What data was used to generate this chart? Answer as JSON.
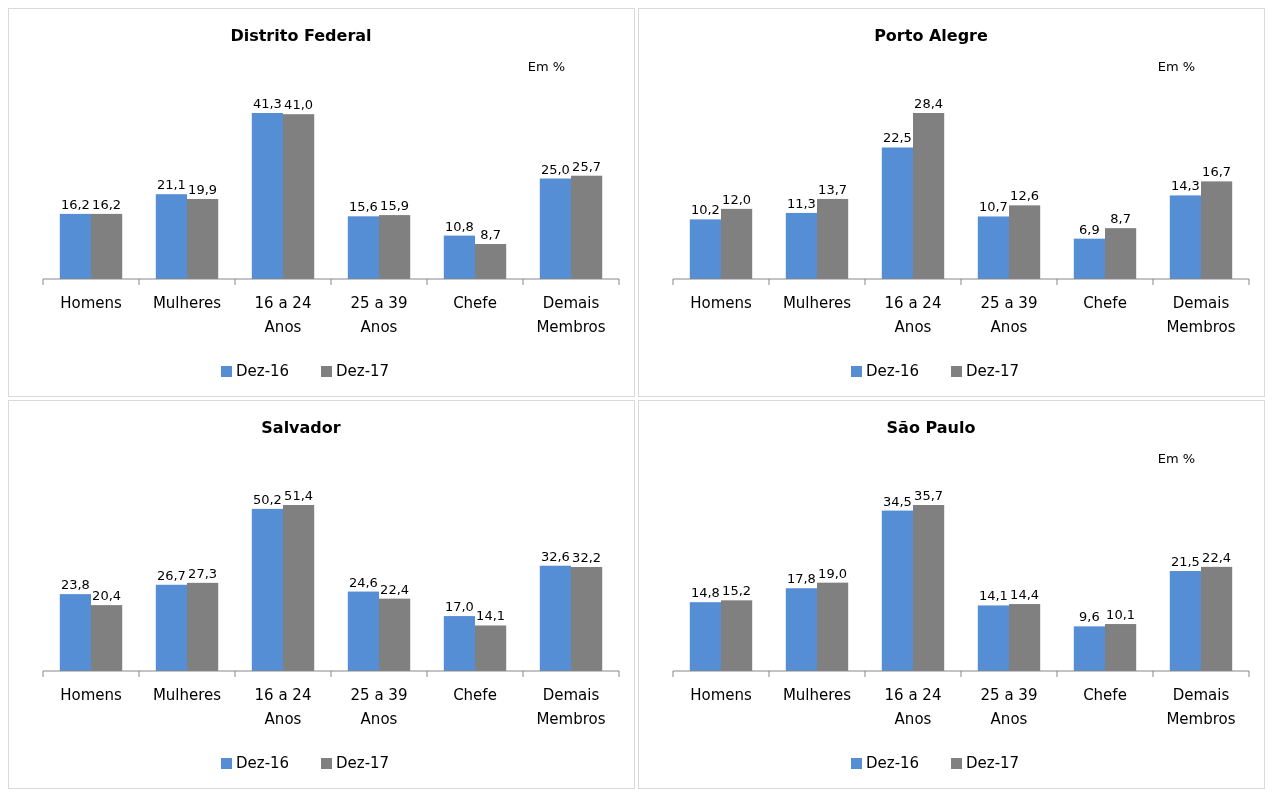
{
  "chart_data": [
    {
      "type": "bar",
      "title": "Distrito Federal",
      "annotations": [
        "Em %"
      ],
      "categories": [
        "Homens",
        "Mulheres",
        "16 a 24 Anos",
        "25 a 39 Anos",
        "Chefe",
        "Demais Membros"
      ],
      "series": [
        {
          "name": "Dez-16",
          "color": "#558ed5",
          "values": [
            16.2,
            21.1,
            41.3,
            15.6,
            10.8,
            25.0
          ],
          "value_labels": [
            "16,2",
            "21,1",
            "41,3",
            "15,6",
            "10,8",
            "25,0"
          ]
        },
        {
          "name": "Dez-17",
          "color": "#808080",
          "values": [
            16.2,
            19.9,
            41.0,
            15.9,
            8.7,
            25.7
          ],
          "value_labels": [
            "16,2",
            "19,9",
            "41,0",
            "15,9",
            "8,7",
            "25,7"
          ]
        }
      ],
      "legend": "bottom"
    },
    {
      "type": "bar",
      "title": "Porto Alegre",
      "annotations": [
        "Em %"
      ],
      "categories": [
        "Homens",
        "Mulheres",
        "16 a 24 Anos",
        "25 a 39 Anos",
        "Chefe",
        "Demais Membros"
      ],
      "series": [
        {
          "name": "Dez-16",
          "color": "#558ed5",
          "values": [
            10.2,
            11.3,
            22.5,
            10.7,
            6.9,
            14.3
          ],
          "value_labels": [
            "10,2",
            "11,3",
            "22,5",
            "10,7",
            "6,9",
            "14,3"
          ]
        },
        {
          "name": "Dez-17",
          "color": "#808080",
          "values": [
            12.0,
            13.7,
            28.4,
            12.6,
            8.7,
            16.7
          ],
          "value_labels": [
            "12,0",
            "13,7",
            "28,4",
            "12,6",
            "8,7",
            "16,7"
          ]
        }
      ],
      "legend": "bottom"
    },
    {
      "type": "bar",
      "title": "Salvador",
      "categories": [
        "Homens",
        "Mulheres",
        "16 a 24 Anos",
        "25 a 39 Anos",
        "Chefe",
        "Demais Membros"
      ],
      "series": [
        {
          "name": "Dez-16",
          "color": "#558ed5",
          "values": [
            23.8,
            26.7,
            50.2,
            24.6,
            17.0,
            32.6
          ],
          "value_labels": [
            "23,8",
            "26,7",
            "50,2",
            "24,6",
            "17,0",
            "32,6"
          ]
        },
        {
          "name": "Dez-17",
          "color": "#808080",
          "values": [
            20.4,
            27.3,
            51.4,
            22.4,
            14.1,
            32.2
          ],
          "value_labels": [
            "20,4",
            "27,3",
            "51,4",
            "22,4",
            "14,1",
            "32,2"
          ]
        }
      ],
      "legend": "bottom"
    },
    {
      "type": "bar",
      "title": "São Paulo",
      "annotations": [
        "Em %"
      ],
      "categories": [
        "Homens",
        "Mulheres",
        "16 a 24 Anos",
        "25 a 39 Anos",
        "Chefe",
        "Demais Membros"
      ],
      "series": [
        {
          "name": "Dez-16",
          "color": "#558ed5",
          "values": [
            14.8,
            17.8,
            34.5,
            14.1,
            9.6,
            21.5
          ],
          "value_labels": [
            "14,8",
            "17,8",
            "34,5",
            "14,1",
            "9,6",
            "21,5"
          ]
        },
        {
          "name": "Dez-17",
          "color": "#808080",
          "values": [
            15.2,
            19.0,
            35.7,
            14.4,
            10.1,
            22.4
          ],
          "value_labels": [
            "15,2",
            "19,0",
            "35,7",
            "14,4",
            "10,1",
            "22,4"
          ]
        }
      ],
      "legend": "bottom"
    }
  ]
}
